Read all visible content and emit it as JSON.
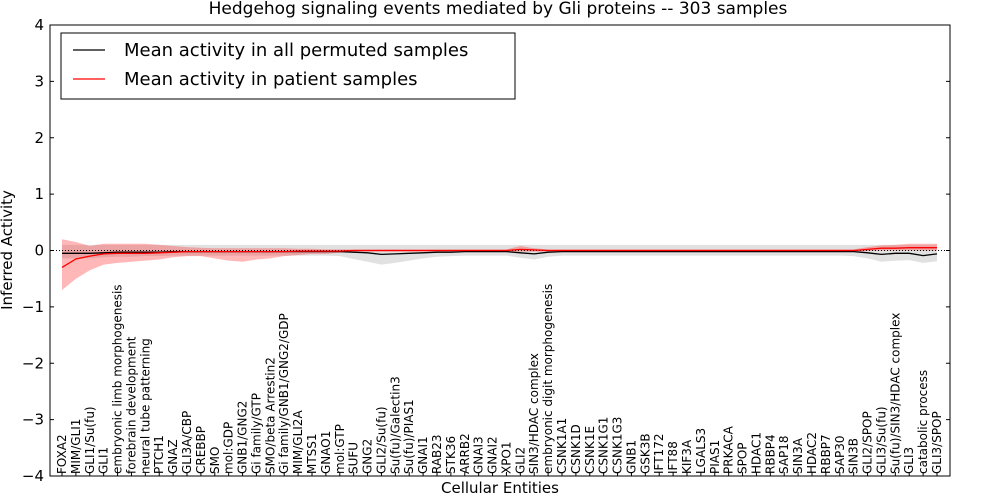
{
  "chart_data": {
    "type": "line",
    "title": "Hedgehog signaling events mediated by Gli proteins -- 303 samples",
    "xlabel": "Cellular Entities",
    "ylabel": "Inferred Activity",
    "ylim": [
      -4,
      4
    ],
    "yticks": [
      "4",
      "3",
      "2",
      "1",
      "0",
      "−1",
      "−2",
      "−3",
      "−4"
    ],
    "legend_position": "top-left",
    "categories": [
      "FOXA2",
      "MIM/GLI1",
      "GLI1/Su(fu)",
      "GLI1",
      "embryonic limb morphogenesis",
      "forebrain development",
      "neural tube patterning",
      "PTCH1",
      "GNAZ",
      "GLI3A/CBP",
      "CREBBP",
      "SMO",
      "mol:GDP",
      "GNB1/GNG2",
      "Gi family/GTP",
      "SMO/beta Arrestin2",
      "Gi family/GNB1/GNG2/GDP",
      "MIM/GLI2A",
      "MTSS1",
      "GNAO1",
      "mol:GTP",
      "SUFU",
      "GNG2",
      "GLI2/Su(fu)",
      "Su(fu)/Galectin3",
      "Su(fu)/PIAS1",
      "GNAI1",
      "RAB23",
      "STK36",
      "ARRB2",
      "GNAI3",
      "GNAI2",
      "XPO1",
      "GLI2",
      "SIN3/HDAC complex",
      "embryonic digit morphogenesis",
      "CSNK1A1",
      "CSNK1D",
      "CSNK1E",
      "CSNK1G1",
      "CSNK1G3",
      "GNB1",
      "GSK3B",
      "IFT172",
      "IFT88",
      "KIF3A",
      "LGALS3",
      "PIAS1",
      "PRKACA",
      "SPOP",
      "HDAC1",
      "RBBP4",
      "SAP18",
      "SIN3A",
      "HDAC2",
      "RBBP7",
      "SAP30",
      "SIN3B",
      "GLI2/SPOP",
      "GLI3/Su(fu)",
      "Su(fu)/SIN3/HDAC complex",
      "GLI3",
      "catabolic process",
      "GLI3/SPOP"
    ],
    "series": [
      {
        "name": "Mean activity in all permuted samples",
        "color": "#000000",
        "values": [
          -0.05,
          -0.05,
          -0.05,
          -0.04,
          -0.03,
          -0.03,
          -0.03,
          -0.03,
          -0.02,
          -0.02,
          -0.02,
          -0.02,
          -0.02,
          -0.02,
          -0.02,
          -0.02,
          -0.02,
          -0.02,
          -0.02,
          -0.02,
          -0.02,
          -0.03,
          -0.04,
          -0.07,
          -0.06,
          -0.05,
          -0.04,
          -0.03,
          -0.03,
          -0.02,
          -0.02,
          -0.02,
          -0.02,
          -0.04,
          -0.06,
          -0.03,
          -0.02,
          -0.02,
          -0.02,
          -0.02,
          -0.02,
          -0.02,
          -0.02,
          -0.02,
          -0.02,
          -0.02,
          -0.02,
          -0.02,
          -0.02,
          -0.02,
          -0.02,
          -0.02,
          -0.02,
          -0.02,
          -0.02,
          -0.02,
          -0.02,
          -0.02,
          -0.04,
          -0.07,
          -0.05,
          -0.05,
          -0.09,
          -0.06
        ],
        "lower": [
          -0.14,
          -0.14,
          -0.14,
          -0.12,
          -0.11,
          -0.11,
          -0.1,
          -0.1,
          -0.09,
          -0.09,
          -0.09,
          -0.09,
          -0.09,
          -0.09,
          -0.09,
          -0.09,
          -0.09,
          -0.09,
          -0.09,
          -0.09,
          -0.1,
          -0.15,
          -0.2,
          -0.25,
          -0.22,
          -0.18,
          -0.14,
          -0.11,
          -0.1,
          -0.09,
          -0.09,
          -0.09,
          -0.09,
          -0.13,
          -0.16,
          -0.11,
          -0.09,
          -0.09,
          -0.09,
          -0.09,
          -0.09,
          -0.09,
          -0.09,
          -0.09,
          -0.09,
          -0.09,
          -0.09,
          -0.09,
          -0.09,
          -0.09,
          -0.09,
          -0.09,
          -0.09,
          -0.09,
          -0.09,
          -0.09,
          -0.09,
          -0.1,
          -0.14,
          -0.2,
          -0.18,
          -0.17,
          -0.22,
          -0.19
        ],
        "upper": [
          0.1,
          0.1,
          0.1,
          0.1,
          0.1,
          0.1,
          0.1,
          0.1,
          0.1,
          0.1,
          0.1,
          0.1,
          0.1,
          0.1,
          0.1,
          0.1,
          0.1,
          0.1,
          0.1,
          0.1,
          0.1,
          0.1,
          0.1,
          0.1,
          0.1,
          0.1,
          0.1,
          0.1,
          0.1,
          0.1,
          0.1,
          0.1,
          0.1,
          0.1,
          0.1,
          0.1,
          0.1,
          0.1,
          0.1,
          0.1,
          0.1,
          0.1,
          0.1,
          0.1,
          0.1,
          0.1,
          0.1,
          0.1,
          0.1,
          0.1,
          0.1,
          0.1,
          0.1,
          0.1,
          0.1,
          0.1,
          0.1,
          0.1,
          0.1,
          0.1,
          0.1,
          0.1,
          0.1,
          0.1
        ]
      },
      {
        "name": "Mean activity in patient samples",
        "color": "#ff0000",
        "values": [
          -0.3,
          -0.15,
          -0.1,
          -0.06,
          -0.05,
          -0.05,
          -0.05,
          -0.04,
          -0.03,
          -0.02,
          -0.02,
          -0.02,
          -0.02,
          -0.02,
          -0.02,
          -0.02,
          -0.02,
          -0.01,
          -0.01,
          -0.01,
          -0.01,
          0,
          0,
          0,
          0,
          0,
          0,
          0,
          0,
          0,
          0,
          0,
          0,
          0.02,
          0.01,
          0,
          0,
          0,
          0,
          0,
          0,
          0,
          0,
          0,
          0,
          0,
          0,
          0,
          0,
          0,
          0,
          0,
          0,
          0,
          0,
          0,
          0,
          0,
          0.02,
          0.04,
          0.04,
          0.05,
          0.05,
          0.05
        ],
        "lower": [
          -0.7,
          -0.5,
          -0.35,
          -0.25,
          -0.22,
          -0.2,
          -0.18,
          -0.16,
          -0.12,
          -0.1,
          -0.1,
          -0.14,
          -0.18,
          -0.2,
          -0.16,
          -0.14,
          -0.1,
          -0.08,
          -0.06,
          -0.06,
          -0.04,
          -0.02,
          -0.02,
          -0.02,
          -0.02,
          -0.02,
          -0.02,
          -0.02,
          -0.02,
          -0.02,
          -0.02,
          -0.02,
          -0.02,
          -0.02,
          -0.02,
          -0.02,
          -0.02,
          -0.02,
          -0.02,
          -0.02,
          -0.02,
          -0.02,
          -0.02,
          -0.02,
          -0.02,
          -0.02,
          -0.02,
          -0.02,
          -0.02,
          -0.02,
          -0.02,
          -0.02,
          -0.02,
          -0.02,
          -0.02,
          -0.02,
          -0.02,
          -0.02,
          -0.01,
          0,
          0,
          0,
          0,
          0
        ],
        "upper": [
          0.2,
          0.15,
          0.08,
          0.12,
          0.12,
          0.12,
          0.12,
          0.1,
          0.08,
          0.06,
          0.05,
          0.04,
          0.04,
          0.04,
          0.04,
          0.04,
          0.04,
          0.03,
          0.03,
          0.02,
          0.02,
          0.02,
          0.02,
          0.02,
          0.02,
          0.02,
          0.02,
          0.02,
          0.02,
          0.02,
          0.02,
          0.02,
          0.02,
          0.08,
          0.04,
          0.02,
          0.02,
          0.02,
          0.02,
          0.02,
          0.02,
          0.02,
          0.02,
          0.02,
          0.02,
          0.02,
          0.02,
          0.02,
          0.02,
          0.02,
          0.02,
          0.02,
          0.02,
          0.02,
          0.02,
          0.02,
          0.02,
          0.02,
          0.06,
          0.09,
          0.1,
          0.12,
          0.12,
          0.12
        ]
      }
    ]
  }
}
